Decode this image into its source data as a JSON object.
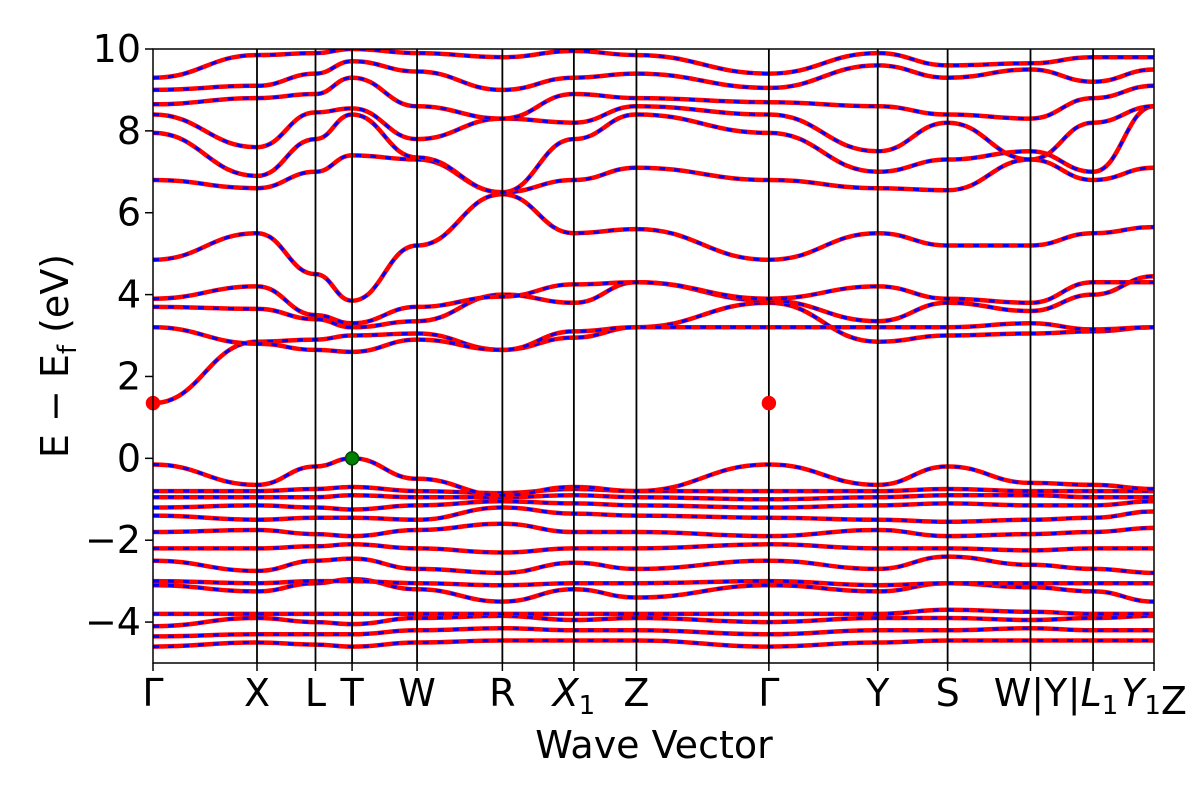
{
  "chart_data": {
    "type": "line",
    "title": "",
    "xlabel": "Wave Vector",
    "ylabel": "E − E",
    "ylabel_sub": "f",
    "ylabel_unit": " (eV)",
    "ylim": [
      -5,
      10
    ],
    "yticks": [
      {
        "value": 10,
        "label": "10"
      },
      {
        "value": 8,
        "label": "8"
      },
      {
        "value": 6,
        "label": "6"
      },
      {
        "value": 4,
        "label": "4"
      },
      {
        "value": 2,
        "label": "2"
      },
      {
        "value": 0,
        "label": "0"
      },
      {
        "value": -2,
        "label": "−2"
      },
      {
        "value": -4,
        "label": "−4"
      }
    ],
    "xlim": [
      0,
      12.32
    ],
    "kpoints": [
      {
        "x": 0.0,
        "label": "Γ"
      },
      {
        "x": 1.28,
        "label": "X"
      },
      {
        "x": 2.0,
        "label": "L"
      },
      {
        "x": 2.45,
        "label": "T"
      },
      {
        "x": 3.25,
        "label": "W"
      },
      {
        "x": 4.3,
        "label": "R"
      },
      {
        "x": 5.18,
        "label": "X",
        "sub": "1"
      },
      {
        "x": 5.95,
        "label": "Z"
      },
      {
        "x": 7.58,
        "label": "Γ"
      },
      {
        "x": 8.92,
        "label": "Y"
      },
      {
        "x": 9.78,
        "label": "S"
      },
      {
        "x": 10.8,
        "label": "W|Y",
        "break": true
      },
      {
        "x": 11.57,
        "label": "L",
        "sub": "1",
        "prefix": "|"
      },
      {
        "x": 12.32,
        "label": "Z",
        "prefix": "Y",
        "prefix_sub": "1"
      }
    ],
    "band_colors": {
      "spin_up": "#ff0000",
      "spin_down": "#0000ff"
    },
    "markers": [
      {
        "x": 0.0,
        "y": 1.35,
        "color": "#ff0000"
      },
      {
        "x": 7.58,
        "y": 1.35,
        "color": "#ff0000"
      },
      {
        "x": 2.45,
        "y": 0.0,
        "color": "#008000"
      }
    ],
    "bands": [
      {
        "x": [
          0,
          1.28,
          2.0,
          2.45,
          3.25,
          4.3,
          5.18,
          5.95,
          7.58,
          8.92,
          9.78,
          10.8,
          11.57,
          12.32
        ],
        "y": [
          -4.6,
          -4.5,
          -4.55,
          -4.6,
          -4.5,
          -4.45,
          -4.45,
          -4.45,
          -4.6,
          -4.5,
          -4.45,
          -4.45,
          -4.45,
          -4.45
        ]
      },
      {
        "x": [
          0,
          1.28,
          2.0,
          2.45,
          3.25,
          4.3,
          5.18,
          5.95,
          7.58,
          8.92,
          9.78,
          10.8,
          11.57,
          12.32
        ],
        "y": [
          -4.35,
          -4.3,
          -4.3,
          -4.3,
          -4.2,
          -4.15,
          -4.2,
          -4.2,
          -4.3,
          -4.2,
          -4.2,
          -4.15,
          -4.2,
          -4.2
        ]
      },
      {
        "x": [
          0,
          1.28,
          2.0,
          2.45,
          3.25,
          4.3,
          5.18,
          5.95,
          7.58,
          8.92,
          9.78,
          10.8,
          11.57,
          12.32
        ],
        "y": [
          -4.1,
          -3.9,
          -4.0,
          -4.05,
          -3.9,
          -3.85,
          -3.95,
          -3.9,
          -4.0,
          -3.9,
          -3.9,
          -3.95,
          -3.9,
          -3.85
        ]
      },
      {
        "x": [
          0,
          1.28,
          2.0,
          2.45,
          3.25,
          4.3,
          5.18,
          5.95,
          7.58,
          8.92,
          9.78,
          10.8,
          11.57,
          12.32
        ],
        "y": [
          -3.8,
          -3.8,
          -3.8,
          -3.8,
          -3.8,
          -3.8,
          -3.8,
          -3.8,
          -3.8,
          -3.8,
          -3.7,
          -3.75,
          -3.8,
          -3.8
        ]
      },
      {
        "x": [
          0,
          1.28,
          2.0,
          2.45,
          3.25,
          4.3,
          5.18,
          5.95,
          7.58,
          8.92,
          9.78,
          10.8,
          11.57,
          12.32
        ],
        "y": [
          -3.1,
          -3.25,
          -3.05,
          -2.95,
          -3.2,
          -3.5,
          -3.2,
          -3.4,
          -3.1,
          -3.25,
          -3.05,
          -3.15,
          -3.25,
          -3.5
        ]
      },
      {
        "x": [
          0,
          1.28,
          2.0,
          2.45,
          3.25,
          4.3,
          5.18,
          5.95,
          7.58,
          8.92,
          9.78,
          10.8,
          11.57,
          12.32
        ],
        "y": [
          -3.0,
          -3.05,
          -3.0,
          -3.0,
          -3.05,
          -3.1,
          -3.05,
          -3.05,
          -3.0,
          -3.1,
          -3.05,
          -3.05,
          -3.05,
          -3.05
        ]
      },
      {
        "x": [
          0,
          1.28,
          2.0,
          2.45,
          3.25,
          4.3,
          5.18,
          5.95,
          7.58,
          8.92,
          9.78,
          10.8,
          11.57,
          12.32
        ],
        "y": [
          -2.5,
          -2.75,
          -2.5,
          -2.45,
          -2.7,
          -2.8,
          -2.55,
          -2.7,
          -2.5,
          -2.7,
          -2.4,
          -2.6,
          -2.7,
          -2.8
        ]
      },
      {
        "x": [
          0,
          1.28,
          2.0,
          2.45,
          3.25,
          4.3,
          5.18,
          5.95,
          7.58,
          8.92,
          9.78,
          10.8,
          11.57,
          12.32
        ],
        "y": [
          -2.2,
          -2.2,
          -2.15,
          -2.1,
          -2.2,
          -2.3,
          -2.2,
          -2.2,
          -2.1,
          -2.2,
          -2.2,
          -2.25,
          -2.2,
          -2.2
        ]
      },
      {
        "x": [
          0,
          1.28,
          2.0,
          2.45,
          3.25,
          4.3,
          5.18,
          5.95,
          7.58,
          8.92,
          9.78,
          10.8,
          11.57,
          12.32
        ],
        "y": [
          -1.8,
          -1.75,
          -1.85,
          -1.9,
          -1.75,
          -1.6,
          -1.8,
          -1.8,
          -1.9,
          -1.75,
          -1.9,
          -1.85,
          -1.8,
          -1.7
        ]
      },
      {
        "x": [
          0,
          1.28,
          2.0,
          2.45,
          3.25,
          4.3,
          5.18,
          5.95,
          7.58,
          8.92,
          9.78,
          10.8,
          11.57,
          12.32
        ],
        "y": [
          -1.4,
          -1.5,
          -1.45,
          -1.45,
          -1.5,
          -1.2,
          -1.35,
          -1.4,
          -1.45,
          -1.5,
          -1.55,
          -1.5,
          -1.45,
          -1.3
        ]
      },
      {
        "x": [
          0,
          1.28,
          2.0,
          2.45,
          3.25,
          4.3,
          5.18,
          5.95,
          7.58,
          8.92,
          9.78,
          10.8,
          11.57,
          12.32
        ],
        "y": [
          -1.2,
          -1.15,
          -1.2,
          -1.25,
          -1.15,
          -1.05,
          -1.1,
          -1.15,
          -1.2,
          -1.15,
          -1.1,
          -1.15,
          -1.15,
          -1.05
        ]
      },
      {
        "x": [
          0,
          1.28,
          2.0,
          2.45,
          3.25,
          4.3,
          5.18,
          5.95,
          7.58,
          8.92,
          9.78,
          10.8,
          11.57,
          12.32
        ],
        "y": [
          -0.95,
          -0.95,
          -0.95,
          -0.9,
          -0.95,
          -0.95,
          -0.9,
          -0.95,
          -1.0,
          -0.95,
          -0.9,
          -0.9,
          -0.95,
          -0.95
        ]
      },
      {
        "x": [
          0,
          1.28,
          2.0,
          2.45,
          3.25,
          4.3,
          5.18,
          5.95,
          7.58,
          8.92,
          9.78,
          10.8,
          11.57,
          12.32
        ],
        "y": [
          -0.8,
          -0.8,
          -0.75,
          -0.7,
          -0.8,
          -0.85,
          -0.75,
          -0.8,
          -0.8,
          -0.8,
          -0.75,
          -0.8,
          -0.8,
          -0.8
        ]
      },
      {
        "x": [
          0,
          1.28,
          2.0,
          2.45,
          3.25,
          4.3,
          5.18,
          5.95,
          7.58,
          8.92,
          9.78,
          10.8,
          11.57,
          12.32
        ],
        "y": [
          -0.15,
          -0.65,
          -0.2,
          0.0,
          -0.5,
          -0.9,
          -0.7,
          -0.8,
          -0.15,
          -0.65,
          -0.2,
          -0.6,
          -0.65,
          -0.75
        ]
      },
      {
        "x": [
          0,
          1.28,
          2.0,
          2.45,
          3.25,
          4.3,
          5.18,
          5.95,
          7.58,
          8.92,
          9.78,
          10.8,
          11.57,
          12.32
        ],
        "y": [
          1.35,
          2.85,
          2.9,
          3.0,
          3.05,
          2.65,
          2.95,
          3.2,
          3.8,
          2.85,
          3.0,
          3.05,
          3.1,
          3.2
        ]
      },
      {
        "x": [
          0,
          1.28,
          2.0,
          2.45,
          3.25,
          4.3,
          5.18,
          5.95,
          7.58,
          8.92,
          9.78,
          10.8,
          11.57,
          12.32
        ],
        "y": [
          3.2,
          2.8,
          2.65,
          2.6,
          2.9,
          2.65,
          3.1,
          3.2,
          3.2,
          3.2,
          3.2,
          3.3,
          3.15,
          3.2
        ]
      },
      {
        "x": [
          0,
          1.28,
          2.0,
          2.45,
          3.25,
          4.3,
          5.18,
          5.95,
          7.58,
          8.92,
          9.78,
          10.8,
          11.57,
          12.32
        ],
        "y": [
          3.7,
          3.65,
          3.4,
          3.2,
          3.35,
          4.0,
          3.8,
          4.3,
          3.85,
          3.35,
          3.8,
          3.6,
          4.0,
          4.45
        ]
      },
      {
        "x": [
          0,
          1.28,
          2.0,
          2.45,
          3.25,
          4.3,
          5.18,
          5.95,
          7.58,
          8.92,
          9.78,
          10.8,
          11.57,
          12.32
        ],
        "y": [
          3.9,
          4.2,
          3.5,
          3.3,
          3.7,
          3.95,
          4.25,
          4.3,
          3.9,
          4.2,
          3.9,
          3.8,
          4.3,
          4.3
        ]
      },
      {
        "x": [
          0,
          1.28,
          2.0,
          2.45,
          3.25,
          4.3,
          5.18,
          5.95,
          7.58,
          8.92,
          9.78,
          10.8,
          11.57,
          12.32
        ],
        "y": [
          4.85,
          5.5,
          4.5,
          3.85,
          5.2,
          6.45,
          5.5,
          5.6,
          4.85,
          5.5,
          5.2,
          5.2,
          5.5,
          5.65
        ]
      },
      {
        "x": [
          0,
          1.28,
          2.0,
          2.45,
          3.25,
          4.3,
          5.18,
          5.95,
          7.58,
          8.92,
          9.78,
          10.8,
          11.57,
          12.32
        ],
        "y": [
          6.8,
          6.6,
          7.0,
          7.4,
          7.3,
          6.5,
          6.8,
          7.1,
          6.8,
          6.6,
          6.55,
          7.3,
          6.8,
          7.1
        ]
      },
      {
        "x": [
          0,
          1.28,
          2.0,
          2.45,
          3.25,
          4.3,
          5.18,
          5.95,
          7.58,
          8.92,
          9.78,
          10.8,
          11.57,
          12.32
        ],
        "y": [
          7.95,
          6.9,
          7.8,
          8.4,
          7.35,
          6.5,
          7.8,
          8.4,
          7.95,
          7.0,
          7.3,
          7.5,
          7.0,
          8.6
        ]
      },
      {
        "x": [
          0,
          1.28,
          2.0,
          2.45,
          3.25,
          4.3,
          5.18,
          5.95,
          7.58,
          8.92,
          9.78,
          10.8,
          11.57,
          12.32
        ],
        "y": [
          8.4,
          7.6,
          8.45,
          8.55,
          7.8,
          8.3,
          8.2,
          8.6,
          8.4,
          7.5,
          8.2,
          7.3,
          8.2,
          8.6
        ]
      },
      {
        "x": [
          0,
          1.28,
          2.0,
          2.45,
          3.25,
          4.3,
          5.18,
          5.95,
          7.58,
          8.92,
          9.78,
          10.8,
          11.57,
          12.32
        ],
        "y": [
          8.65,
          8.8,
          8.9,
          9.3,
          8.6,
          8.3,
          8.9,
          8.8,
          8.7,
          8.6,
          8.4,
          8.3,
          8.8,
          9.1
        ]
      },
      {
        "x": [
          0,
          1.28,
          2.0,
          2.45,
          3.25,
          4.3,
          5.18,
          5.95,
          7.58,
          8.92,
          9.78,
          10.8,
          11.57,
          12.32
        ],
        "y": [
          9.0,
          9.1,
          9.4,
          9.7,
          9.45,
          9.0,
          9.3,
          9.4,
          9.05,
          9.6,
          9.3,
          9.5,
          9.2,
          9.5
        ]
      },
      {
        "x": [
          0,
          1.28,
          2.0,
          2.45,
          3.25,
          4.3,
          5.18,
          5.95,
          7.58,
          8.92,
          9.78,
          10.8,
          11.57,
          12.32
        ],
        "y": [
          9.3,
          9.85,
          9.9,
          10.0,
          9.9,
          9.8,
          9.95,
          9.85,
          9.4,
          9.9,
          9.6,
          9.65,
          9.8,
          9.8
        ]
      }
    ]
  }
}
